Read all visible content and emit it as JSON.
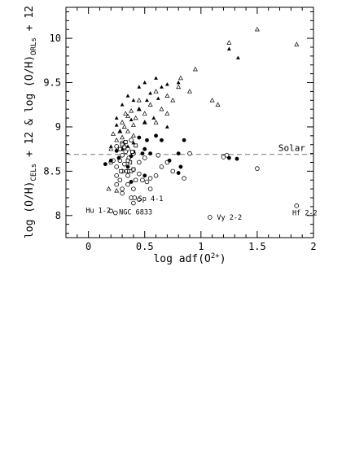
{
  "chart_data": {
    "type": "scatter",
    "xlabel_main": "log adf(O",
    "xlabel_sup": "2+",
    "xlabel_end": ")",
    "ylabel": {
      "p1": "log (O/H)",
      "s1": "CELs",
      "p2": " + 12 & log (O/H)",
      "s2": "ORLs",
      "p3": " + 12"
    },
    "xlim": [
      -0.2,
      2.0
    ],
    "ylim": [
      7.75,
      10.35
    ],
    "x_ticks": [
      0,
      0.5,
      1,
      1.5,
      2
    ],
    "x_tick_labels": [
      "0",
      "0.5",
      "1",
      "1.5",
      "2"
    ],
    "y_ticks": [
      8,
      8.5,
      9,
      9.5,
      10
    ],
    "y_tick_labels": [
      "8",
      "8.5",
      "9",
      "9.5",
      "10"
    ],
    "reference_line": {
      "label": "Solar",
      "y": 8.69,
      "style": "dashed",
      "color": "#888888"
    },
    "annotations": [
      {
        "text": "Hu 1-2",
        "x": 0.22,
        "y": 8.06,
        "anchor": "end"
      },
      {
        "text": "NGC 6833",
        "x": 0.25,
        "y": 8.04,
        "anchor": "start"
      },
      {
        "text": "Sp 4-1",
        "x": 0.42,
        "y": 8.19,
        "anchor": "start"
      },
      {
        "text": "Vy 2-2",
        "x": 1.12,
        "y": 7.98,
        "anchor": "start"
      },
      {
        "text": "Hf 2-2",
        "x": 1.79,
        "y": 8.03,
        "anchor": "start"
      }
    ],
    "series": [
      {
        "marker": "open-circle",
        "points": [
          [
            0.2,
            8.6
          ],
          [
            0.22,
            8.62
          ],
          [
            0.25,
            8.55
          ],
          [
            0.28,
            8.62
          ],
          [
            0.3,
            8.68
          ],
          [
            0.32,
            8.58
          ],
          [
            0.25,
            8.45
          ],
          [
            0.3,
            8.5
          ],
          [
            0.35,
            8.45
          ],
          [
            0.4,
            8.52
          ],
          [
            0.45,
            8.47
          ],
          [
            0.28,
            8.4
          ],
          [
            0.35,
            8.35
          ],
          [
            0.4,
            8.3
          ],
          [
            0.48,
            8.4
          ],
          [
            0.52,
            8.38
          ],
          [
            0.55,
            8.42
          ],
          [
            0.3,
            8.25
          ],
          [
            0.38,
            8.2
          ],
          [
            0.45,
            8.18
          ],
          [
            0.4,
            8.14
          ],
          [
            0.3,
            8.3
          ],
          [
            0.25,
            8.35
          ],
          [
            0.55,
            8.3
          ],
          [
            0.6,
            8.45
          ],
          [
            0.65,
            8.55
          ],
          [
            0.7,
            8.6
          ],
          [
            0.75,
            8.5
          ],
          [
            0.62,
            8.68
          ],
          [
            0.5,
            8.65
          ],
          [
            0.4,
            8.7
          ],
          [
            0.35,
            8.75
          ],
          [
            0.3,
            8.82
          ],
          [
            0.25,
            8.78
          ],
          [
            0.38,
            8.85
          ],
          [
            0.45,
            8.6
          ],
          [
            0.85,
            8.42
          ],
          [
            0.9,
            8.7
          ],
          [
            1.2,
            8.66
          ],
          [
            1.23,
            8.68
          ],
          [
            1.5,
            8.53
          ],
          [
            0.36,
            8.65
          ],
          [
            0.33,
            8.72
          ],
          [
            0.42,
            8.4
          ],
          [
            0.2,
            8.05
          ],
          [
            0.24,
            8.03
          ],
          [
            0.41,
            8.2
          ],
          [
            1.08,
            7.98
          ],
          [
            1.85,
            8.11
          ]
        ]
      },
      {
        "marker": "filled-circle",
        "points": [
          [
            0.15,
            8.58
          ],
          [
            0.2,
            8.62
          ],
          [
            0.27,
            8.65
          ],
          [
            0.3,
            8.75
          ],
          [
            0.32,
            8.82
          ],
          [
            0.38,
            8.67
          ],
          [
            0.4,
            8.72
          ],
          [
            0.45,
            8.88
          ],
          [
            0.5,
            8.75
          ],
          [
            0.55,
            8.7
          ],
          [
            0.6,
            8.9
          ],
          [
            0.65,
            8.85
          ],
          [
            0.8,
            8.7
          ],
          [
            0.85,
            8.85
          ],
          [
            0.82,
            8.55
          ],
          [
            0.8,
            8.48
          ],
          [
            0.72,
            8.62
          ],
          [
            0.38,
            8.38
          ],
          [
            0.5,
            8.45
          ],
          [
            1.25,
            8.65
          ],
          [
            1.32,
            8.64
          ],
          [
            0.52,
            8.85
          ],
          [
            0.35,
            8.55
          ],
          [
            0.48,
            8.7
          ],
          [
            0.25,
            8.73
          ]
        ]
      },
      {
        "marker": "open-square",
        "points": [
          [
            0.3,
            8.8
          ],
          [
            0.32,
            8.77
          ],
          [
            0.34,
            8.5
          ],
          [
            0.36,
            8.5
          ],
          [
            0.38,
            8.5
          ],
          [
            0.4,
            8.52
          ],
          [
            0.37,
            8.6
          ],
          [
            0.33,
            8.83
          ],
          [
            0.42,
            8.79
          ],
          [
            0.28,
            8.75
          ],
          [
            0.29,
            8.5
          ],
          [
            0.35,
            8.62
          ],
          [
            0.39,
            8.72
          ]
        ]
      },
      {
        "marker": "open-triangle",
        "points": [
          [
            0.2,
            8.75
          ],
          [
            0.25,
            8.85
          ],
          [
            0.28,
            8.95
          ],
          [
            0.3,
            9.05
          ],
          [
            0.32,
            9.0
          ],
          [
            0.35,
            9.12
          ],
          [
            0.38,
            9.18
          ],
          [
            0.42,
            9.1
          ],
          [
            0.45,
            9.2
          ],
          [
            0.5,
            9.15
          ],
          [
            0.55,
            9.25
          ],
          [
            0.6,
            9.05
          ],
          [
            0.65,
            9.2
          ],
          [
            0.7,
            9.35
          ],
          [
            0.75,
            9.3
          ],
          [
            0.8,
            9.45
          ],
          [
            0.82,
            9.55
          ],
          [
            0.9,
            9.4
          ],
          [
            0.95,
            9.65
          ],
          [
            0.35,
            8.95
          ],
          [
            0.4,
            8.9
          ],
          [
            0.3,
            8.88
          ],
          [
            0.22,
            8.92
          ],
          [
            0.18,
            8.3
          ],
          [
            0.25,
            8.28
          ],
          [
            0.45,
            9.3
          ],
          [
            0.6,
            9.4
          ],
          [
            0.7,
            9.15
          ],
          [
            1.1,
            9.3
          ],
          [
            1.15,
            9.25
          ],
          [
            1.25,
            9.95
          ],
          [
            1.5,
            10.1
          ],
          [
            1.85,
            9.93
          ],
          [
            0.5,
            9.05
          ],
          [
            0.4,
            9.02
          ],
          [
            0.33,
            9.15
          ]
        ]
      },
      {
        "marker": "filled-triangle",
        "points": [
          [
            0.45,
            9.45
          ],
          [
            0.5,
            9.5
          ],
          [
            0.55,
            9.38
          ],
          [
            0.6,
            9.55
          ],
          [
            0.65,
            9.45
          ],
          [
            0.7,
            9.48
          ],
          [
            0.8,
            9.5
          ],
          [
            0.35,
            9.35
          ],
          [
            0.4,
            9.3
          ],
          [
            0.3,
            9.25
          ],
          [
            0.52,
            9.3
          ],
          [
            0.62,
            9.32
          ],
          [
            0.25,
            9.1
          ],
          [
            0.35,
            8.78
          ],
          [
            0.4,
            8.82
          ],
          [
            0.28,
            8.95
          ],
          [
            0.5,
            9.05
          ],
          [
            1.25,
            9.88
          ],
          [
            1.33,
            9.78
          ],
          [
            0.2,
            8.78
          ],
          [
            0.7,
            9.0
          ],
          [
            0.58,
            9.1
          ],
          [
            0.45,
            9.2
          ],
          [
            0.25,
            9.02
          ],
          [
            0.38,
            9.08
          ]
        ]
      }
    ]
  }
}
